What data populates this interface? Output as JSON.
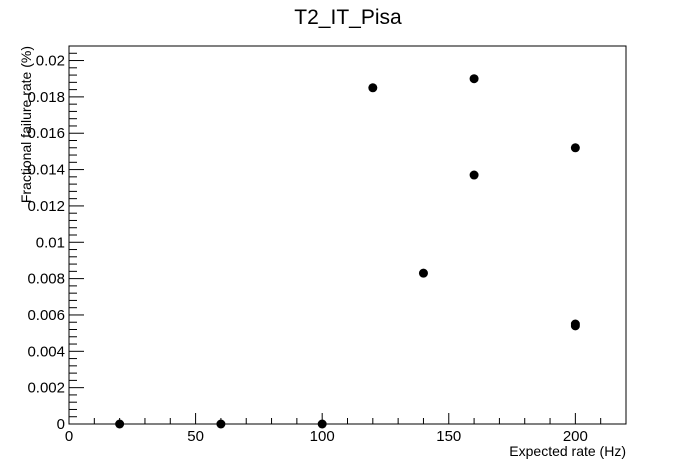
{
  "chart_data": {
    "type": "scatter",
    "title": "T2_IT_Pisa",
    "xlabel": "Expected rate (Hz)",
    "ylabel": "Fractional failure rate (%)",
    "xlim": [
      0,
      220
    ],
    "ylim": [
      0,
      0.0208
    ],
    "grid": false,
    "legend": "none",
    "marker_color": "#000000",
    "x_ticks": [
      0,
      50,
      100,
      150,
      200
    ],
    "x_tick_labels": [
      "0",
      "50",
      "100",
      "150",
      "200"
    ],
    "y_ticks": [
      0,
      0.002,
      0.004,
      0.006,
      0.008,
      0.01,
      0.012,
      0.014,
      0.016,
      0.018,
      0.02
    ],
    "y_tick_labels": [
      "0",
      "0.002",
      "0.004",
      "0.006",
      "0.008",
      "0.01",
      "0.012",
      "0.014",
      "0.016",
      "0.018",
      "0.02"
    ],
    "points": [
      {
        "x": 20,
        "y": 0
      },
      {
        "x": 60,
        "y": 0
      },
      {
        "x": 100,
        "y": 0
      },
      {
        "x": 120,
        "y": 0.0185
      },
      {
        "x": 140,
        "y": 0.0083
      },
      {
        "x": 160,
        "y": 0.019
      },
      {
        "x": 160,
        "y": 0.0137
      },
      {
        "x": 200,
        "y": 0.0152
      },
      {
        "x": 200,
        "y": 0.0055
      },
      {
        "x": 200,
        "y": 0.0054
      }
    ]
  }
}
